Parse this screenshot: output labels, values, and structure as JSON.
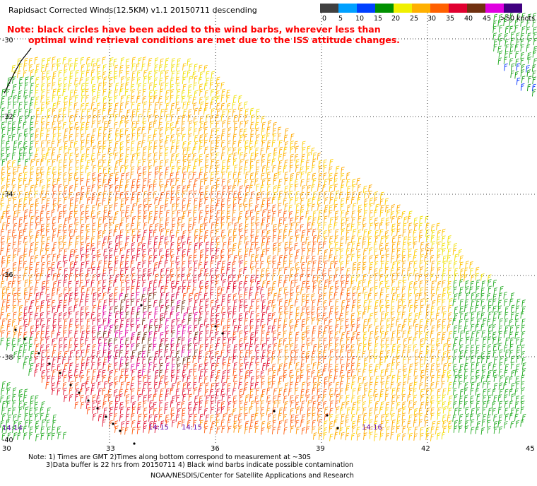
{
  "title": "Rapidsact Corrected Winds(12.5KM) v1.1 20150711 descending",
  "note": {
    "line1": "Note: black circles have been added to the wind barbs, wherever less than",
    "line2": "optimal wind retrieval conditions are met due to the ISS attitude changes."
  },
  "legend": {
    "labels": [
      "0",
      "5",
      "10",
      "15",
      "20",
      "25",
      "30",
      "35",
      "40",
      "45",
      ">50 knots"
    ],
    "colors": [
      "#404040",
      "#00a0ff",
      "#0040ff",
      "#009000",
      "#f0f000",
      "#ffb000",
      "#ff6000",
      "#e00030",
      "#703010",
      "#e000e0",
      "#400080"
    ]
  },
  "lat_labels": [
    "-30",
    "-32",
    "-34",
    "-36",
    "-38",
    "-40"
  ],
  "lon_labels": [
    "30",
    "33",
    "36",
    "39",
    "42",
    "45"
  ],
  "time_labels": [
    "14:14",
    "14:15",
    "14:15",
    "14:16"
  ],
  "footer": {
    "line1": "Note: 1) Times are GMT 2)Times along bottom correspond to measurement at ~30S",
    "line2": "3)Data buffer is 22 hrs from 20150711 4) Black wind barbs indicate possible contamination",
    "line3": "NOAA/NESDIS/Center for Satellite Applications and Research"
  }
}
